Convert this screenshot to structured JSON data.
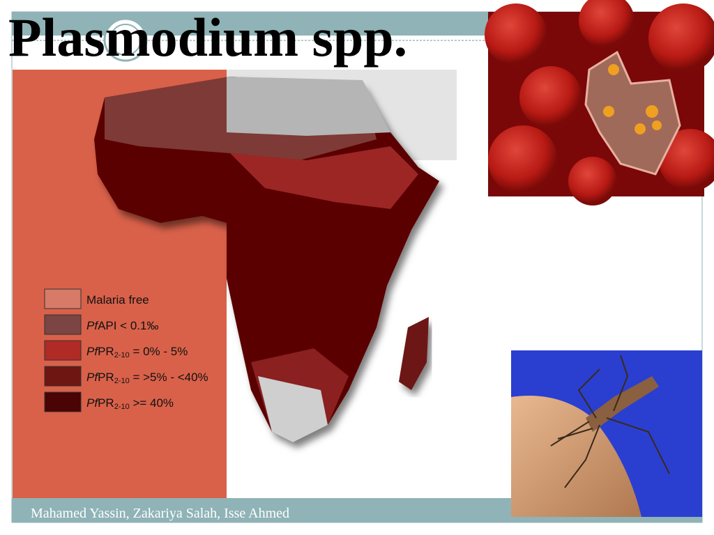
{
  "slide": {
    "title": "Plasmodium spp.",
    "legend": [
      {
        "main": "Malaria free"
      },
      {
        "italic": "Pf",
        "main": "API < 0.1‰"
      },
      {
        "italic": "Pf",
        "main": "PR",
        "sub": "2-10",
        "rest": " = 0% - 5%"
      },
      {
        "italic": "Pf",
        "main": "PR",
        "sub": "2-10",
        "rest": " = >5%  - <40%"
      },
      {
        "italic": "Pf",
        "main": "PR",
        "sub": "2-10",
        "rest": " >= 40%"
      }
    ],
    "footer": "Mahamed Yassin, Zakariya Salah, Isse Ahmed"
  }
}
